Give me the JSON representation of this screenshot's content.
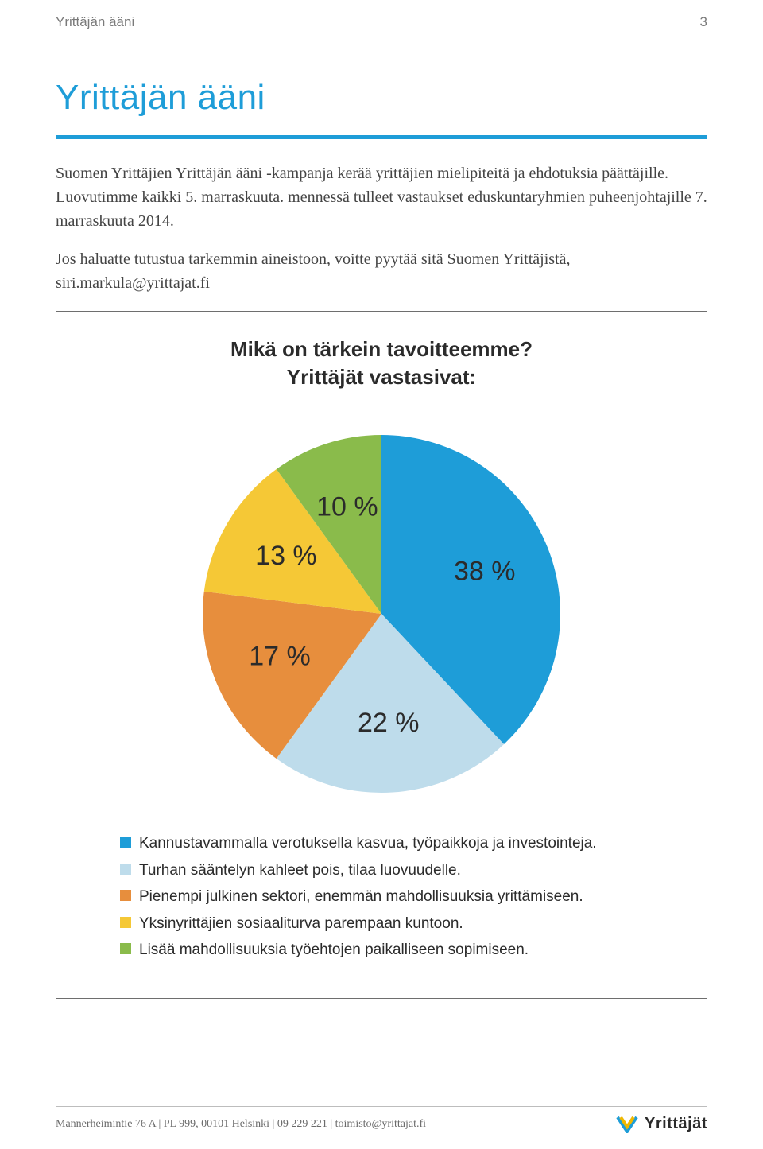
{
  "header": {
    "section": "Yrittäjän ääni",
    "page_number": "3"
  },
  "title": "Yrittäjän ääni",
  "intro": {
    "p1": "Suomen Yrittäjien Yrittäjän ääni -kampanja kerää yrittäjien mielipiteitä ja ehdotuksia päättäjille. Luovutimme kaikki 5. marraskuuta. mennessä tulleet vastaukset eduskuntaryhmien puheenjohtajille 7. marraskuuta 2014.",
    "p2": "Jos haluatte tutustua tarkemmin aineistoon, voitte pyytää sitä Suomen Yrittäjistä, siri.markula@yrittajat.fi"
  },
  "chart": {
    "title_l1": "Mikä on tärkein tavoitteemme?",
    "title_l2": "Yrittäjät vastasivat:",
    "type": "pie",
    "radius": 225,
    "label_fontsize": 34,
    "label_color": "#2b2b2b",
    "slices": [
      {
        "value": 38,
        "label": "38 %",
        "color": "#1e9dd8"
      },
      {
        "value": 22,
        "label": "22 %",
        "color": "#bedceb"
      },
      {
        "value": 17,
        "label": "17 %",
        "color": "#e78e3d"
      },
      {
        "value": 13,
        "label": "13 %",
        "color": "#f5c836"
      },
      {
        "value": 10,
        "label": "10 %",
        "color": "#8abb4b"
      }
    ],
    "legend": [
      {
        "color": "#1e9dd8",
        "text": "Kannustavammalla verotuksella kasvua, työpaikkoja ja investointeja."
      },
      {
        "color": "#bedceb",
        "text": "Turhan sääntelyn kahleet pois, tilaa luovuudelle."
      },
      {
        "color": "#e78e3d",
        "text": "Pienempi julkinen sektori, enemmän mahdollisuuksia yrittämiseen."
      },
      {
        "color": "#f5c836",
        "text": "Yksinyrittäjien sosiaaliturva parempaan kuntoon."
      },
      {
        "color": "#8abb4b",
        "text": "Lisää mahdollisuuksia työehtojen paikalliseen sopimiseen."
      }
    ]
  },
  "footer": {
    "text": "Mannerheimintie 76 A | PL 999, 00101 Helsinki | 09 229 221 | toimisto@yrittajat.fi",
    "logo_text": "Yrittäjät"
  }
}
